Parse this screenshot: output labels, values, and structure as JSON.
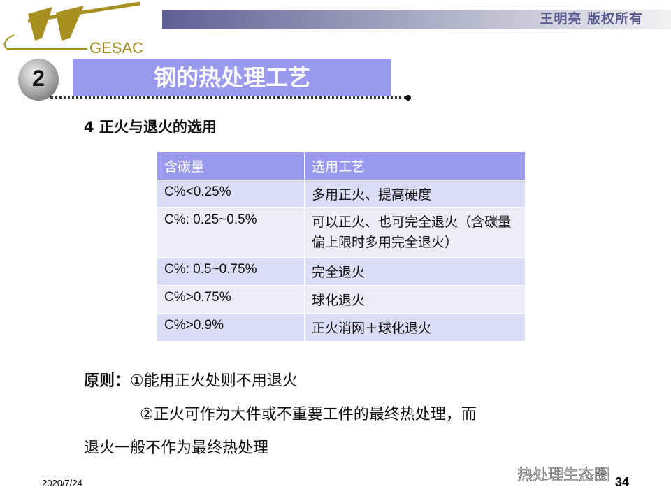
{
  "header": {
    "copyright": "王明亮 版权所有",
    "logo_text": "GESAC",
    "section_number": "2",
    "title": "钢的热处理工艺"
  },
  "subtitle": "4 正火与退火的选用",
  "table": {
    "headers": [
      "含碳量",
      "选用工艺"
    ],
    "rows": [
      [
        "C%<0.25%",
        "多用正火、提高硬度"
      ],
      [
        "C%: 0.25~0.5%",
        "可以正火、也可完全退火（含碳量偏上限时多用完全退火）"
      ],
      [
        "C%: 0.5~0.75%",
        "完全退火"
      ],
      [
        "C%>0.75%",
        "球化退火"
      ],
      [
        "C%>0.9%",
        "正火消网＋球化退火"
      ]
    ]
  },
  "principle": {
    "label": "原则：",
    "item1": "①能用正火处则不用退火",
    "item2": "②正火可作为大件或不重要工件的最终热处理，而",
    "item2_cont": "退火一般不作为最终热处理"
  },
  "footer": {
    "date": "2020/7/24",
    "page": "34",
    "watermark": "热处理生态圈"
  }
}
